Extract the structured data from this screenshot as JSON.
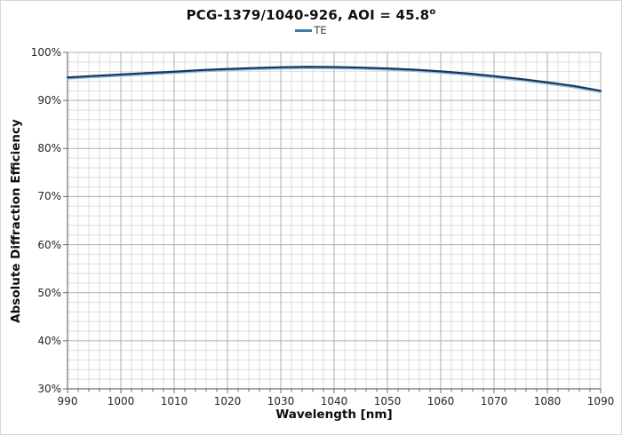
{
  "title": {
    "main": "PCG-1379/1040-926, AOI = 45.8",
    "degree_sup": "o"
  },
  "legend": {
    "items": [
      {
        "label": "TE",
        "line_color": "#3e7ca8"
      }
    ]
  },
  "axes": {
    "x_label": "Wavelength [nm]",
    "y_label": "Absolute Diffraction Efficiency"
  },
  "chart_data": {
    "type": "line",
    "title": "PCG-1379/1040-926, AOI = 45.8°",
    "xlabel": "Wavelength [nm]",
    "ylabel": "Absolute Diffraction Efficiency",
    "xlim": [
      990,
      1090
    ],
    "ylim": [
      30,
      100
    ],
    "x_ticks": [
      990,
      1000,
      1010,
      1020,
      1030,
      1040,
      1050,
      1060,
      1070,
      1080,
      1090
    ],
    "y_ticks": [
      {
        "value": 100,
        "label": "100%"
      },
      {
        "value": 90,
        "label": "90%"
      },
      {
        "value": 80,
        "label": "80%"
      },
      {
        "value": 70,
        "label": "70%"
      },
      {
        "value": 60,
        "label": "60%"
      },
      {
        "value": 50,
        "label": "50%"
      },
      {
        "value": 40,
        "label": "40%"
      },
      {
        "value": 30,
        "label": "30%"
      }
    ],
    "x_minor_step": 2,
    "y_minor_step": 2,
    "grid": "major and minor gridlines on",
    "legend_position": "top-center",
    "series": [
      {
        "name": "TE",
        "color": "#17375e",
        "x": [
          990,
          995,
          1000,
          1005,
          1010,
          1015,
          1020,
          1025,
          1030,
          1035,
          1040,
          1045,
          1050,
          1055,
          1060,
          1065,
          1070,
          1075,
          1080,
          1085,
          1090
        ],
        "y": [
          94.8,
          95.1,
          95.4,
          95.7,
          96.0,
          96.3,
          96.55,
          96.75,
          96.9,
          97.0,
          96.95,
          96.85,
          96.65,
          96.4,
          96.05,
          95.6,
          95.05,
          94.45,
          93.75,
          93.0,
          92.0
        ]
      }
    ]
  },
  "colors": {
    "curve": "#17375e",
    "curve_ghost": "#8fbadc",
    "legend_line": "#3e7ca8",
    "grid_minor": "#dedede",
    "grid_major": "#adadad",
    "axis": "#6e6e6e",
    "tick_text": "#262626"
  }
}
